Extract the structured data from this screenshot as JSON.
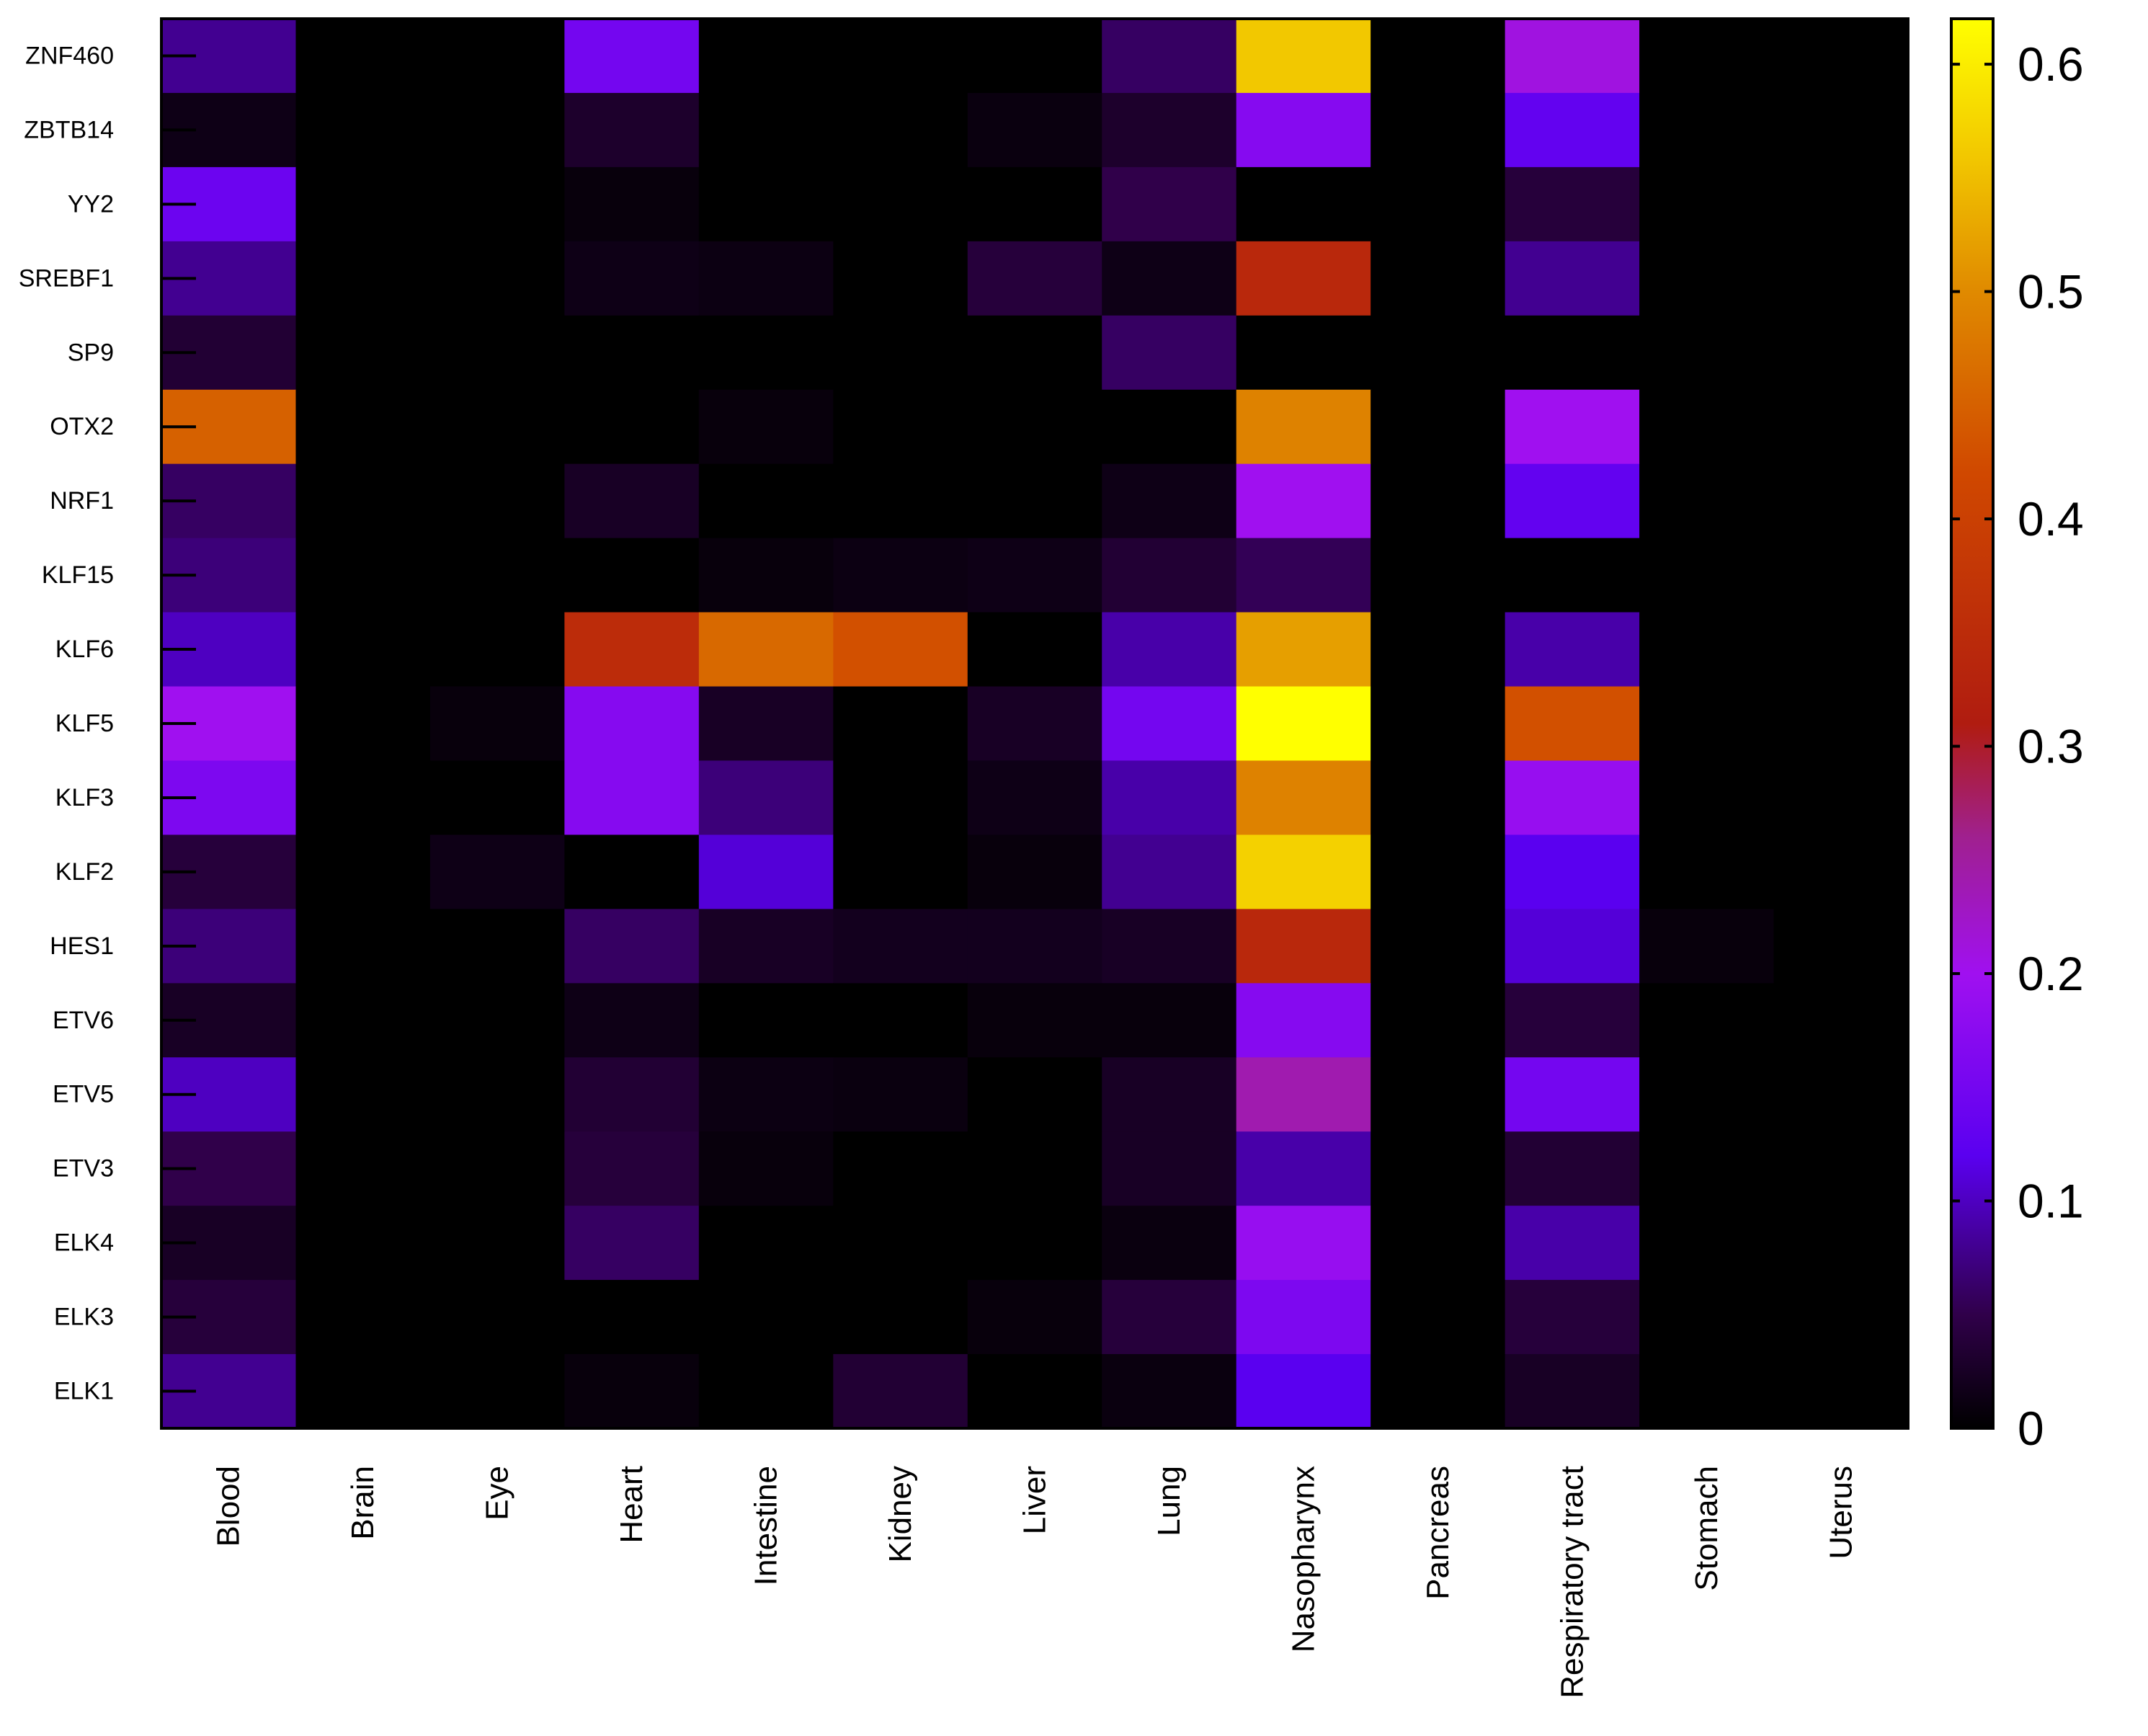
{
  "chart_data": {
    "type": "heatmap",
    "title": "",
    "columns": [
      "Blood",
      "Brain",
      "Eye",
      "Heart",
      "Intestine",
      "Kidney",
      "Liver",
      "Lung",
      "Nasopharynx",
      "Pancreas",
      "Respiratory tract",
      "Stomach",
      "Uterus"
    ],
    "rows": [
      "ZNF460",
      "ZBTB14",
      "YY2",
      "SREBF1",
      "SP9",
      "OTX2",
      "NRF1",
      "KLF15",
      "KLF6",
      "KLF5",
      "KLF3",
      "KLF2",
      "HES1",
      "ETV6",
      "ETV5",
      "ETV3",
      "ELK4",
      "ELK3",
      "ELK1"
    ],
    "values": [
      [
        0.08,
        0,
        0,
        0.15,
        0,
        0,
        0,
        0.06,
        0.56,
        0,
        0.21,
        0,
        0
      ],
      [
        0.015,
        0,
        0,
        0.03,
        0,
        0,
        0.01,
        0.03,
        0.17,
        0,
        0.13,
        0,
        0
      ],
      [
        0.14,
        0,
        0,
        0.008,
        0,
        0,
        0,
        0.05,
        0,
        0,
        0.04,
        0,
        0
      ],
      [
        0.08,
        0,
        0,
        0.015,
        0.012,
        0,
        0.04,
        0.015,
        0.34,
        0,
        0.08,
        0,
        0
      ],
      [
        0.035,
        0,
        0,
        0,
        0,
        0,
        0,
        0.06,
        0,
        0,
        0,
        0,
        0
      ],
      [
        0.45,
        0,
        0,
        0,
        0.008,
        0,
        0,
        0,
        0.49,
        0,
        0.2,
        0,
        0
      ],
      [
        0.06,
        0,
        0,
        0.025,
        0,
        0,
        0,
        0.015,
        0.2,
        0,
        0.13,
        0,
        0
      ],
      [
        0.07,
        0,
        0,
        0,
        0.008,
        0.012,
        0.015,
        0.035,
        0.055,
        0,
        0,
        0,
        0
      ],
      [
        0.1,
        0,
        0,
        0.35,
        0.46,
        0.43,
        0,
        0.09,
        0.52,
        0,
        0.09,
        0,
        0
      ],
      [
        0.2,
        0,
        0.008,
        0.17,
        0.025,
        0,
        0.025,
        0.15,
        0.62,
        0,
        0.43,
        0,
        0
      ],
      [
        0.16,
        0,
        0,
        0.17,
        0.07,
        0,
        0.015,
        0.09,
        0.49,
        0,
        0.19,
        0,
        0
      ],
      [
        0.04,
        0,
        0.015,
        0,
        0.11,
        0,
        0.008,
        0.08,
        0.57,
        0,
        0.12,
        0,
        0
      ],
      [
        0.07,
        0,
        0,
        0.06,
        0.025,
        0.02,
        0.02,
        0.025,
        0.34,
        0,
        0.11,
        0.008,
        0
      ],
      [
        0.025,
        0,
        0,
        0.015,
        0,
        0,
        0.008,
        0.008,
        0.17,
        0,
        0.04,
        0,
        0
      ],
      [
        0.1,
        0,
        0,
        0.035,
        0.012,
        0.01,
        0,
        0.025,
        0.24,
        0,
        0.15,
        0,
        0
      ],
      [
        0.05,
        0,
        0,
        0.04,
        0.008,
        0,
        0,
        0.025,
        0.09,
        0,
        0.035,
        0,
        0
      ],
      [
        0.025,
        0,
        0,
        0.06,
        0,
        0,
        0,
        0.01,
        0.19,
        0,
        0.09,
        0,
        0
      ],
      [
        0.04,
        0,
        0,
        0,
        0,
        0,
        0.008,
        0.04,
        0.16,
        0,
        0.04,
        0,
        0
      ],
      [
        0.08,
        0,
        0,
        0.008,
        0,
        0.035,
        0,
        0.01,
        0.12,
        0,
        0.025,
        0,
        0
      ]
    ],
    "colorbar": {
      "min": 0,
      "max": 0.62,
      "ticks": [
        "0",
        "0.1",
        "0.2",
        "0.3",
        "0.4",
        "0.5",
        "0.6"
      ],
      "tick_values": [
        0,
        0.1,
        0.2,
        0.3,
        0.4,
        0.5,
        0.6
      ],
      "palette": "black-purple-red-orange-yellow"
    },
    "palette_stops": [
      {
        "v": 0.0,
        "color": "#000000"
      },
      {
        "v": 0.05,
        "color": "#30004a"
      },
      {
        "v": 0.12,
        "color": "#5a00f0"
      },
      {
        "v": 0.2,
        "color": "#a010f0"
      },
      {
        "v": 0.26,
        "color": "#a0208f"
      },
      {
        "v": 0.31,
        "color": "#b01c10"
      },
      {
        "v": 0.42,
        "color": "#d04800"
      },
      {
        "v": 0.5,
        "color": "#e08a00"
      },
      {
        "v": 0.56,
        "color": "#f2c800"
      },
      {
        "v": 0.62,
        "color": "#ffff00"
      }
    ]
  }
}
